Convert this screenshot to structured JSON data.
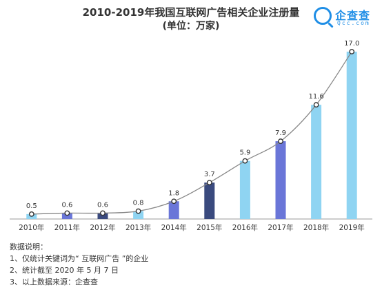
{
  "header": {
    "title": "2010-2019年我国互联网广告相关企业注册量",
    "subtitle": "(单位：万家)"
  },
  "logo": {
    "name": "企查查",
    "sub": "Qcc.com",
    "icon": "magnifier-logo-icon",
    "color": "#1f8ee6"
  },
  "chart_data": {
    "type": "bar",
    "title": "2010-2019年我国互联网广告相关企业注册量",
    "subtitle": "(单位：万家)",
    "categories": [
      "2010年",
      "2011年",
      "2012年",
      "2013年",
      "2014年",
      "2015年",
      "2016年",
      "2017年",
      "2018年",
      "2019年"
    ],
    "values": [
      0.5,
      0.6,
      0.6,
      0.8,
      1.8,
      3.7,
      5.9,
      7.9,
      11.6,
      17.0
    ],
    "value_labels": [
      "0.5",
      "0.6",
      "0.6",
      "0.8",
      "1.8",
      "3.7",
      "5.9",
      "7.9",
      "11.6",
      "17.0"
    ],
    "bar_colors": [
      "#8fd4f2",
      "#6a76d8",
      "#3a4a7e",
      "#8fd4f2",
      "#6a76d8",
      "#3a4a7e",
      "#8fd4f2",
      "#6a76d8",
      "#8fd4f2",
      "#8fd4f2"
    ],
    "trend_line": true,
    "ylim": [
      0,
      17.0
    ],
    "grid": false,
    "legend": "none"
  },
  "notes": {
    "heading": "数据说明：",
    "items": [
      "1、仅统计关键词为“ 互联网广告 ”的企业",
      "2、统计截至 2020 年 5 月 7 日",
      "3、以上数据来源：企查查"
    ]
  }
}
